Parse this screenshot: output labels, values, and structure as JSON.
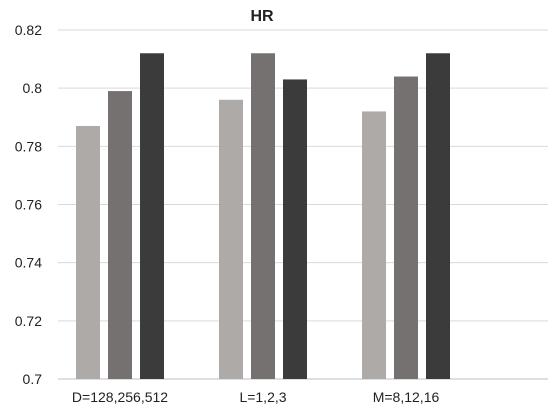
{
  "chart_data": {
    "type": "bar",
    "title": "HR",
    "xlabel": "",
    "ylabel": "",
    "categories": [
      "D=128,256,512",
      "L=1,2,3",
      "M=8,12,16"
    ],
    "series": [
      {
        "values": [
          0.787,
          0.796,
          0.792
        ],
        "color": "#adaaa8"
      },
      {
        "values": [
          0.799,
          0.812,
          0.804
        ],
        "color": "#767171"
      },
      {
        "values": [
          0.812,
          0.803,
          0.812
        ],
        "color": "#3b3b3b"
      }
    ],
    "ylim": [
      0.7,
      0.82
    ],
    "yticks": [
      "0.7",
      "0.72",
      "0.74",
      "0.76",
      "0.78",
      "0.8",
      "0.82"
    ],
    "grid": true,
    "legend": "none"
  }
}
